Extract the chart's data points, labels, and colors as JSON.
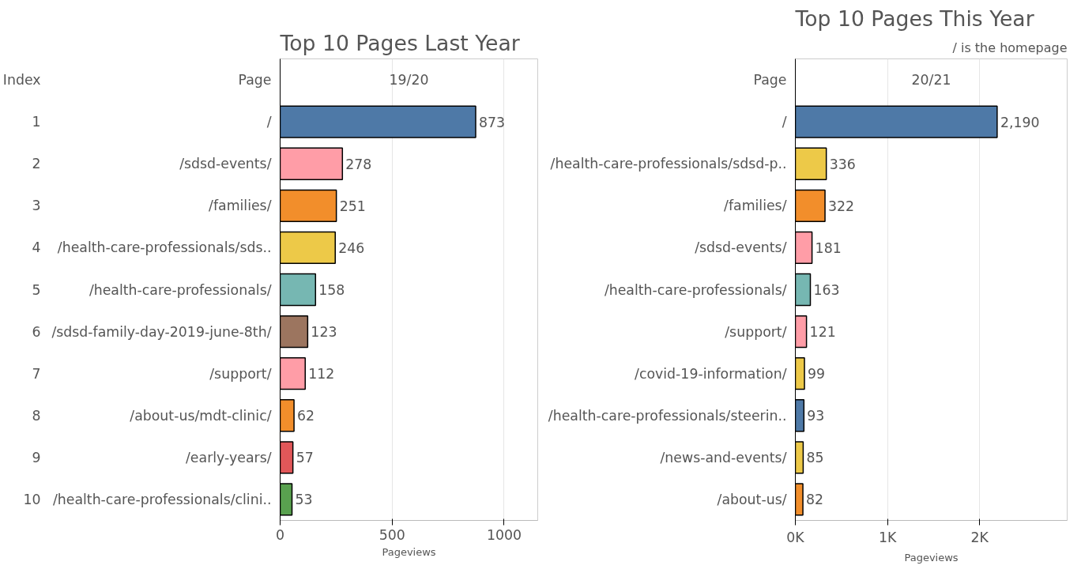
{
  "chart_data": [
    {
      "type": "bar",
      "orientation": "horizontal",
      "title": "Top 10 Pages Last Year",
      "xlabel": "Pageviews",
      "x2label": "19/20",
      "ylabel": "Page",
      "y2label": "Index",
      "categories": [
        "/",
        "/sdsd-events/",
        "/families/",
        "/health-care-professionals/sds..",
        "/health-care-professionals/",
        "/sdsd-family-day-2019-june-8th/",
        "/support/",
        "/about-us/mdt-clinic/",
        "/early-years/",
        "/health-care-professionals/clini.."
      ],
      "y2_categories": [
        "1",
        "2",
        "3",
        "4",
        "5",
        "6",
        "7",
        "8",
        "9",
        "10"
      ],
      "values": [
        873,
        278,
        251,
        246,
        158,
        123,
        112,
        62,
        57,
        53
      ],
      "value_labels": [
        "873",
        "278",
        "251",
        "246",
        "158",
        "123",
        "112",
        "62",
        "57",
        "53"
      ],
      "colors": [
        "#4e79a7",
        "#ff9da7",
        "#f28e2b",
        "#edc948",
        "#76b7b2",
        "#9c755f",
        "#ff9da7",
        "#f28e2b",
        "#e15759",
        "#59a14f"
      ],
      "xlim": [
        0,
        1150
      ],
      "xticks": [
        0,
        500,
        1000
      ],
      "grid": "x"
    },
    {
      "type": "bar",
      "orientation": "horizontal",
      "title": "Top 10 Pages This Year",
      "xlabel": "Pageviews",
      "x2label": "20/21",
      "ylabel": "Page",
      "annotations": [
        "/ is the homepage"
      ],
      "categories": [
        "/",
        "/health-care-professionals/sdsd-p..",
        "/families/",
        "/sdsd-events/",
        "/health-care-professionals/",
        "/support/",
        "/covid-19-information/",
        "/health-care-professionals/steerin..",
        "/news-and-events/",
        "/about-us/"
      ],
      "values": [
        2190,
        336,
        322,
        181,
        163,
        121,
        99,
        93,
        85,
        82
      ],
      "value_labels": [
        "2,190",
        "336",
        "322",
        "181",
        "163",
        "121",
        "99",
        "93",
        "85",
        "82"
      ],
      "colors": [
        "#4e79a7",
        "#edc948",
        "#f28e2b",
        "#ff9da7",
        "#76b7b2",
        "#ff9da7",
        "#edc948",
        "#4e79a7",
        "#edc948",
        "#f28e2b"
      ],
      "xlim": [
        0,
        2950
      ],
      "xticks": [
        {
          "value": 0,
          "label": "0K"
        },
        {
          "value": 1000,
          "label": "1K"
        },
        {
          "value": 2000,
          "label": "2K"
        }
      ],
      "grid": "x"
    }
  ]
}
